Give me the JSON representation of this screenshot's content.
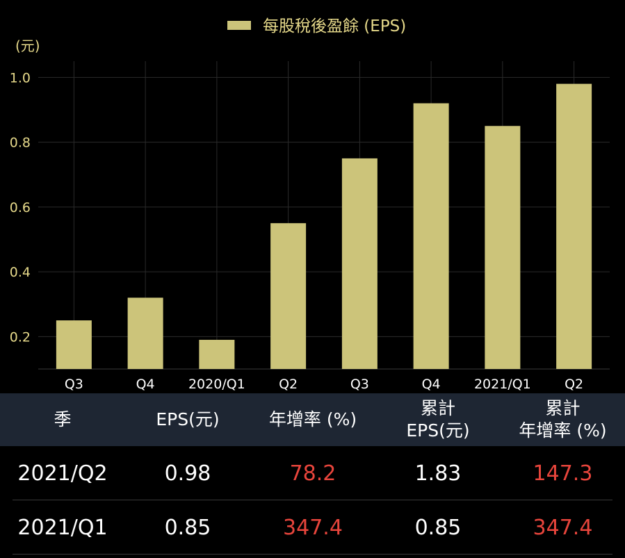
{
  "chart_data": {
    "type": "bar",
    "legend": "每股稅後盈餘 (EPS)",
    "legend_position": "top-center",
    "y_unit": "(元)",
    "categories": [
      "Q3",
      "Q4",
      "2020/Q1",
      "Q2",
      "Q3",
      "Q4",
      "2021/Q1",
      "Q2"
    ],
    "values": [
      0.25,
      0.32,
      0.19,
      0.55,
      0.75,
      0.92,
      0.85,
      0.98
    ],
    "y_ticks": [
      "0.2",
      "0.4",
      "0.6",
      "0.8",
      "1.0"
    ],
    "ylim": [
      0.1,
      1.05
    ],
    "bar_color": "#ccc47a",
    "grid": true
  },
  "table": {
    "headers": [
      {
        "line1": "季",
        "line2": ""
      },
      {
        "line1": "EPS(元)",
        "line2": ""
      },
      {
        "line1": "年增率 (%)",
        "line2": ""
      },
      {
        "line1": "累計",
        "line2": "EPS(元)"
      },
      {
        "line1": "累計",
        "line2": "年增率 (%)"
      }
    ],
    "rows": [
      {
        "season": "2021/Q2",
        "eps": "0.98",
        "yoy": "78.2",
        "cum_eps": "1.83",
        "cum_yoy": "147.3"
      },
      {
        "season": "2021/Q1",
        "eps": "0.85",
        "yoy": "347.4",
        "cum_eps": "0.85",
        "cum_yoy": "347.4"
      }
    ]
  },
  "colors": {
    "background": "#000000",
    "header_bg": "#1e2633",
    "growth_text": "#e8453c",
    "legend_text": "#e6d98a"
  }
}
